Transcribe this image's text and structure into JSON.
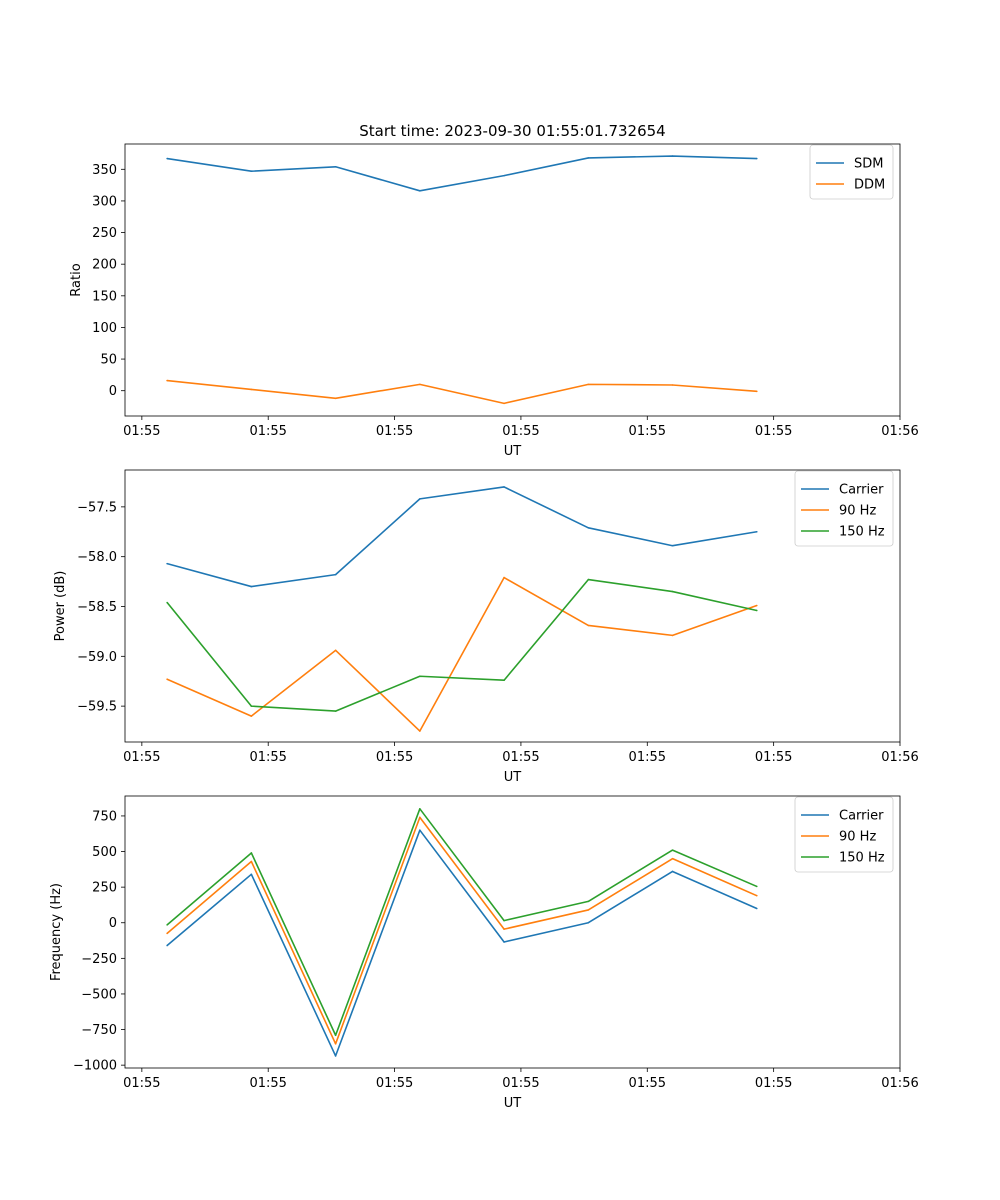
{
  "figure_title": "Start time: 2023-09-30 01:55:01.732654",
  "colors": {
    "blue": "#1f77b4",
    "orange": "#ff7f0e",
    "green": "#2ca02c"
  },
  "chart_data": [
    {
      "type": "line",
      "title": "Start time: 2023-09-30 01:55:01.732654",
      "xlabel": "UT",
      "ylabel": "Ratio",
      "x": [
        0,
        1,
        2,
        3,
        4,
        5,
        6,
        7
      ],
      "xlim": [
        -0.5,
        8.7
      ],
      "x_ticks": [
        -0.3,
        1.2,
        2.7,
        4.2,
        5.7,
        7.2,
        8.7
      ],
      "x_tick_labels": [
        "01:55",
        "01:55",
        "01:55",
        "01:55",
        "01:55",
        "01:55",
        "01:56"
      ],
      "ylim": [
        -40,
        390
      ],
      "y_ticks": [
        0,
        50,
        100,
        150,
        200,
        250,
        300,
        350
      ],
      "y_tick_labels": [
        "0",
        "50",
        "100",
        "150",
        "200",
        "250",
        "300",
        "350"
      ],
      "legend_position": "top-right",
      "series": [
        {
          "name": "SDM",
          "color": "#1f77b4",
          "values": [
            367,
            347,
            354,
            316,
            340,
            368,
            371,
            367
          ]
        },
        {
          "name": "DDM",
          "color": "#ff7f0e",
          "values": [
            16,
            2,
            -12,
            10,
            -20,
            10,
            9,
            -1
          ]
        }
      ]
    },
    {
      "type": "line",
      "title": "",
      "xlabel": "UT",
      "ylabel": "Power (dB)",
      "x": [
        0,
        1,
        2,
        3,
        4,
        5,
        6,
        7
      ],
      "xlim": [
        -0.5,
        8.7
      ],
      "x_ticks": [
        -0.3,
        1.2,
        2.7,
        4.2,
        5.7,
        7.2,
        8.7
      ],
      "x_tick_labels": [
        "01:55",
        "01:55",
        "01:55",
        "01:55",
        "01:55",
        "01:55",
        "01:56"
      ],
      "ylim": [
        -59.86,
        -57.13
      ],
      "y_ticks": [
        -57.5,
        -58.0,
        -58.5,
        -59.0,
        -59.5
      ],
      "y_tick_labels": [
        "−57.5",
        "−58.0",
        "−58.5",
        "−59.0",
        "−59.5"
      ],
      "legend_position": "top-right",
      "series": [
        {
          "name": "Carrier",
          "color": "#1f77b4",
          "values": [
            -58.07,
            -58.3,
            -58.18,
            -57.42,
            -57.3,
            -57.71,
            -57.89,
            -57.75
          ]
        },
        {
          "name": "90 Hz",
          "color": "#ff7f0e",
          "values": [
            -59.23,
            -59.6,
            -58.94,
            -59.75,
            -58.21,
            -58.69,
            -58.79,
            -58.49
          ]
        },
        {
          "name": "150 Hz",
          "color": "#2ca02c",
          "values": [
            -58.46,
            -59.5,
            -59.55,
            -59.2,
            -59.24,
            -58.23,
            -58.35,
            -58.54
          ]
        }
      ]
    },
    {
      "type": "line",
      "title": "",
      "xlabel": "UT",
      "ylabel": "Frequency (Hz)",
      "x": [
        0,
        1,
        2,
        3,
        4,
        5,
        6,
        7
      ],
      "xlim": [
        -0.5,
        8.7
      ],
      "x_ticks": [
        -0.3,
        1.2,
        2.7,
        4.2,
        5.7,
        7.2,
        8.7
      ],
      "x_tick_labels": [
        "01:55",
        "01:55",
        "01:55",
        "01:55",
        "01:55",
        "01:55",
        "01:56"
      ],
      "ylim": [
        -1020,
        890
      ],
      "y_ticks": [
        750,
        500,
        250,
        0,
        -250,
        -500,
        -750,
        -1000
      ],
      "y_tick_labels": [
        "750",
        "500",
        "250",
        "0",
        "−250",
        "−500",
        "−750",
        "−1000"
      ],
      "legend_position": "top-right",
      "series": [
        {
          "name": "Carrier",
          "color": "#1f77b4",
          "values": [
            -160,
            340,
            -935,
            650,
            -135,
            0,
            360,
            100
          ]
        },
        {
          "name": "90 Hz",
          "color": "#ff7f0e",
          "values": [
            -75,
            430,
            -850,
            740,
            -45,
            90,
            450,
            190
          ]
        },
        {
          "name": "150 Hz",
          "color": "#2ca02c",
          "values": [
            -15,
            490,
            -790,
            800,
            15,
            150,
            510,
            255
          ]
        }
      ]
    }
  ]
}
